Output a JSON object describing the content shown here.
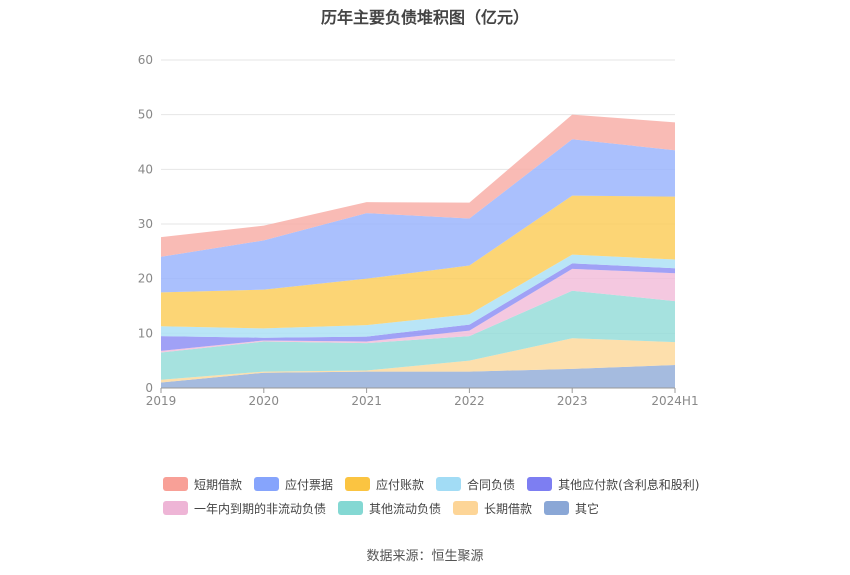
{
  "chart_data": {
    "type": "area",
    "title": "历年主要负债堆积图（亿元）",
    "stacked": true,
    "categories": [
      "2019",
      "2020",
      "2021",
      "2022",
      "2023",
      "2024H1"
    ],
    "ylim": [
      0,
      60
    ],
    "yticks": [
      0,
      10,
      20,
      30,
      40,
      50,
      60
    ],
    "grid": true,
    "legend_position": "bottom",
    "series": [
      {
        "name": "其它",
        "color": "#91acd8",
        "values": [
          1.0,
          2.8,
          3.0,
          3.0,
          3.5,
          4.2
        ]
      },
      {
        "name": "长期借款",
        "color": "#fdd89a",
        "values": [
          0.5,
          0.2,
          0.2,
          2.0,
          5.6,
          4.2
        ]
      },
      {
        "name": "其他流动负债",
        "color": "#93dcd8",
        "values": [
          5.0,
          5.5,
          5.0,
          4.5,
          8.7,
          7.5
        ]
      },
      {
        "name": "一年内到期的非流动负债",
        "color": "#f1bcd9",
        "values": [
          0.3,
          0.2,
          0.3,
          1.0,
          4.0,
          5.1
        ]
      },
      {
        "name": "其他应付款(含利息和股利)",
        "color": "#8b8cf4",
        "values": [
          2.7,
          0.5,
          0.9,
          1.1,
          1.0,
          0.9
        ]
      },
      {
        "name": "合同负债",
        "color": "#aadff5",
        "values": [
          1.8,
          1.7,
          2.1,
          1.9,
          1.6,
          1.6
        ]
      },
      {
        "name": "应付账款",
        "color": "#fbcc57",
        "values": [
          6.2,
          7.1,
          8.5,
          8.9,
          10.8,
          11.5
        ]
      },
      {
        "name": "应付票据",
        "color": "#97b2fc",
        "values": [
          6.5,
          9.0,
          12.0,
          8.6,
          10.3,
          8.5
        ]
      },
      {
        "name": "短期借款",
        "color": "#f8aca5",
        "values": [
          3.6,
          2.7,
          2.0,
          2.9,
          4.5,
          5.1
        ]
      }
    ]
  },
  "legend": {
    "row1": [
      {
        "label": "短期借款",
        "color": "#f8a097"
      },
      {
        "label": "应付票据",
        "color": "#86a4fc"
      },
      {
        "label": "应付账款",
        "color": "#fbc441"
      },
      {
        "label": "合同负债",
        "color": "#a2dcf5"
      },
      {
        "label": "其他应付款(含利息和股利)",
        "color": "#7d7ef2"
      }
    ],
    "row2": [
      {
        "label": "一年内到期的非流动负债",
        "color": "#eeb5d6"
      },
      {
        "label": "其他流动负债",
        "color": "#84d8d3"
      },
      {
        "label": "长期借款",
        "color": "#fdd597"
      },
      {
        "label": "其它",
        "color": "#8aa7d6"
      }
    ]
  },
  "source": "数据来源：恒生聚源"
}
